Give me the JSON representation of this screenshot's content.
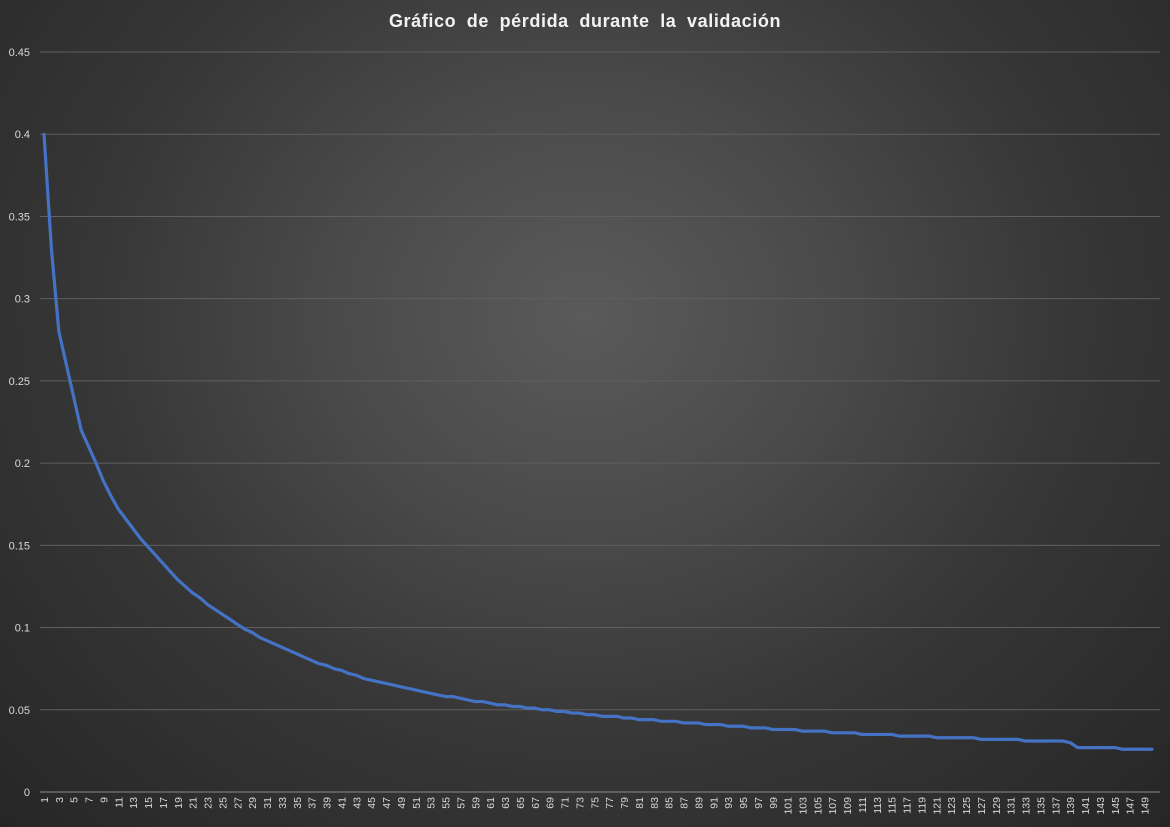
{
  "chart_data": {
    "type": "line",
    "title": "Gráfico de pérdida durante la validación",
    "xlabel": "",
    "ylabel": "",
    "ylim": [
      0,
      0.45
    ],
    "y_ticks": [
      "0",
      "0.05",
      "0.1",
      "0.15",
      "0.2",
      "0.25",
      "0.3",
      "0.35",
      "0.4",
      "0.45"
    ],
    "x_tick_labels": [
      1,
      3,
      5,
      7,
      9,
      11,
      13,
      15,
      17,
      19,
      21,
      23,
      25,
      27,
      29,
      31,
      33,
      35,
      37,
      39,
      41,
      43,
      45,
      47,
      49,
      51,
      53,
      55,
      57,
      59,
      61,
      63,
      65,
      67,
      69,
      71,
      73,
      75,
      77,
      79,
      81,
      83,
      85,
      87,
      89,
      91,
      93,
      95,
      97,
      99,
      101,
      103,
      105,
      107,
      109,
      111,
      113,
      115,
      117,
      119,
      121,
      123,
      125,
      127,
      129,
      131,
      133,
      135,
      137,
      139,
      141,
      143,
      145,
      147,
      149
    ],
    "grid": true,
    "legend": "none",
    "line_color": "#4472c4",
    "series": [
      {
        "x": [
          1,
          2,
          3,
          4,
          5,
          6,
          7,
          8,
          9,
          10,
          11,
          12,
          13,
          14,
          15,
          16,
          17,
          18,
          19,
          20,
          21,
          22,
          23,
          24,
          25,
          26,
          27,
          28,
          29,
          30,
          31,
          32,
          33,
          34,
          35,
          36,
          37,
          38,
          39,
          40,
          41,
          42,
          43,
          44,
          45,
          46,
          47,
          48,
          49,
          50,
          51,
          52,
          53,
          54,
          55,
          56,
          57,
          58,
          59,
          60,
          61,
          62,
          63,
          64,
          65,
          66,
          67,
          68,
          69,
          70,
          71,
          72,
          73,
          74,
          75,
          76,
          77,
          78,
          79,
          80,
          81,
          82,
          83,
          84,
          85,
          86,
          87,
          88,
          89,
          90,
          91,
          92,
          93,
          94,
          95,
          96,
          97,
          98,
          99,
          100,
          101,
          102,
          103,
          104,
          105,
          106,
          107,
          108,
          109,
          110,
          111,
          112,
          113,
          114,
          115,
          116,
          117,
          118,
          119,
          120,
          121,
          122,
          123,
          124,
          125,
          126,
          127,
          128,
          129,
          130,
          131,
          132,
          133,
          134,
          135,
          136,
          137,
          138,
          139,
          140,
          141,
          142,
          143,
          144,
          145,
          146,
          147,
          148,
          149,
          150
        ],
        "values": [
          0.4,
          0.33,
          0.28,
          0.26,
          0.24,
          0.22,
          0.21,
          0.2,
          0.189,
          0.18,
          0.172,
          0.166,
          0.16,
          0.154,
          0.149,
          0.144,
          0.139,
          0.134,
          0.129,
          0.125,
          0.121,
          0.118,
          0.114,
          0.111,
          0.108,
          0.105,
          0.102,
          0.099,
          0.097,
          0.094,
          0.092,
          0.09,
          0.088,
          0.086,
          0.084,
          0.082,
          0.08,
          0.078,
          0.077,
          0.075,
          0.074,
          0.072,
          0.071,
          0.069,
          0.068,
          0.067,
          0.066,
          0.065,
          0.064,
          0.063,
          0.062,
          0.061,
          0.06,
          0.059,
          0.058,
          0.058,
          0.057,
          0.056,
          0.055,
          0.055,
          0.054,
          0.053,
          0.053,
          0.052,
          0.052,
          0.051,
          0.051,
          0.05,
          0.05,
          0.049,
          0.049,
          0.048,
          0.048,
          0.047,
          0.047,
          0.046,
          0.046,
          0.046,
          0.045,
          0.045,
          0.044,
          0.044,
          0.044,
          0.043,
          0.043,
          0.043,
          0.042,
          0.042,
          0.042,
          0.041,
          0.041,
          0.041,
          0.04,
          0.04,
          0.04,
          0.039,
          0.039,
          0.039,
          0.038,
          0.038,
          0.038,
          0.038,
          0.037,
          0.037,
          0.037,
          0.037,
          0.036,
          0.036,
          0.036,
          0.036,
          0.035,
          0.035,
          0.035,
          0.035,
          0.035,
          0.034,
          0.034,
          0.034,
          0.034,
          0.034,
          0.033,
          0.033,
          0.033,
          0.033,
          0.033,
          0.033,
          0.032,
          0.032,
          0.032,
          0.032,
          0.032,
          0.032,
          0.031,
          0.031,
          0.031,
          0.031,
          0.031,
          0.031,
          0.03,
          0.027,
          0.027,
          0.027,
          0.027,
          0.027,
          0.027,
          0.026,
          0.026,
          0.026,
          0.026,
          0.026
        ]
      }
    ]
  }
}
